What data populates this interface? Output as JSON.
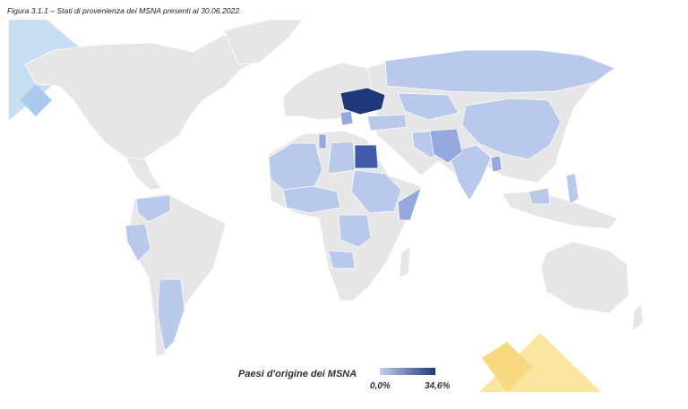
{
  "caption": "Figura 3.1.1 – Stati di provenienza dei MSNA presenti al 30.06.2022.",
  "legend": {
    "title": "Paesi d'origine dei MSNA",
    "min_label": "0,0%",
    "max_label": "34,6%",
    "min_color": "#c2d0ef",
    "max_color": "#1f3778"
  },
  "colors": {
    "land_default": "#e6e6e6",
    "land_light": "#b9c9ec",
    "land_mid": "#95a9de",
    "land_strong": "#3f5aa8",
    "land_max": "#1f3778",
    "decor_blue": "#b5d3ef",
    "decor_yellow": "#f8dd7e"
  },
  "map_data": {
    "metric": "Paesi d'origine dei MSNA",
    "unit": "%",
    "highlighted_countries": [
      {
        "name": "Ukraine",
        "level": "max"
      },
      {
        "name": "Egypt",
        "level": "strong"
      },
      {
        "name": "Pakistan",
        "level": "mid"
      },
      {
        "name": "Bangladesh",
        "level": "mid"
      },
      {
        "name": "Afghanistan",
        "level": "mid"
      },
      {
        "name": "Tunisia",
        "level": "mid"
      },
      {
        "name": "Albania",
        "level": "mid"
      },
      {
        "name": "Somalia",
        "level": "mid"
      },
      {
        "name": "Kosovo",
        "level": "light"
      },
      {
        "name": "Russia",
        "level": "light"
      },
      {
        "name": "Kazakhstan",
        "level": "light"
      },
      {
        "name": "China",
        "level": "light"
      },
      {
        "name": "Turkey",
        "level": "light"
      },
      {
        "name": "Iran",
        "level": "light"
      },
      {
        "name": "India",
        "level": "light"
      },
      {
        "name": "Sudan",
        "level": "light"
      },
      {
        "name": "Algeria",
        "level": "light"
      },
      {
        "name": "Morocco",
        "level": "light"
      },
      {
        "name": "Libya",
        "level": "light"
      },
      {
        "name": "Nigeria",
        "level": "light"
      },
      {
        "name": "Senegal",
        "level": "light"
      },
      {
        "name": "Mali",
        "level": "light"
      },
      {
        "name": "Ethiopia",
        "level": "light"
      },
      {
        "name": "Eritrea",
        "level": "light"
      },
      {
        "name": "Angola",
        "level": "light"
      },
      {
        "name": "DR Congo",
        "level": "light"
      },
      {
        "name": "Colombia",
        "level": "light"
      },
      {
        "name": "Venezuela",
        "level": "light"
      },
      {
        "name": "Ecuador",
        "level": "light"
      },
      {
        "name": "Peru",
        "level": "light"
      },
      {
        "name": "Argentina",
        "level": "light"
      },
      {
        "name": "Philippines",
        "level": "light"
      },
      {
        "name": "Malaysia",
        "level": "light"
      }
    ]
  }
}
